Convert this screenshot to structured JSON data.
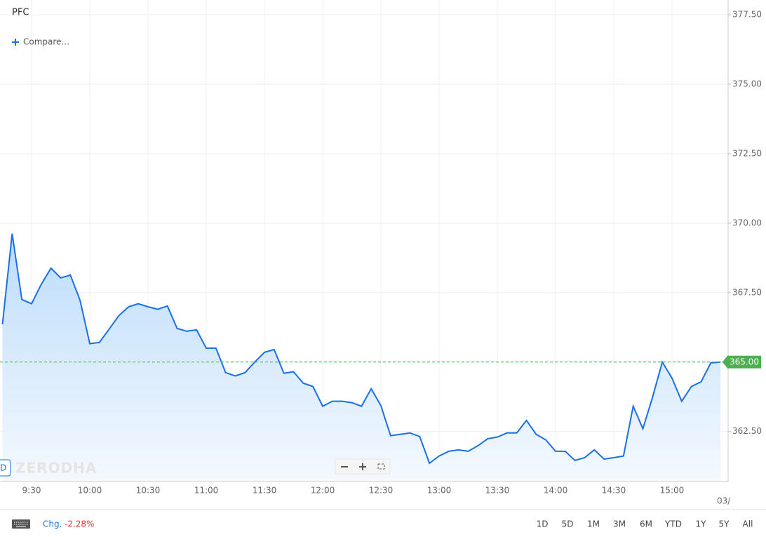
{
  "chart_data": {
    "type": "line",
    "title": "PFC",
    "fill": true,
    "grid": true,
    "x": [
      "9:15",
      "9:20",
      "9:25",
      "9:30",
      "9:35",
      "9:40",
      "9:45",
      "9:50",
      "9:55",
      "10:00",
      "10:05",
      "10:10",
      "10:15",
      "10:20",
      "10:25",
      "10:30",
      "10:35",
      "10:40",
      "10:45",
      "10:50",
      "10:55",
      "11:00",
      "11:05",
      "11:10",
      "11:15",
      "11:20",
      "11:25",
      "11:30",
      "11:35",
      "11:40",
      "11:45",
      "11:50",
      "11:55",
      "12:00",
      "12:05",
      "12:10",
      "12:15",
      "12:20",
      "12:25",
      "12:30",
      "12:35",
      "12:40",
      "12:45",
      "12:50",
      "12:55",
      "13:00",
      "13:05",
      "13:10",
      "13:15",
      "13:20",
      "13:25",
      "13:30",
      "13:35",
      "13:40",
      "13:45",
      "13:50",
      "13:55",
      "14:00",
      "14:05",
      "14:10",
      "14:15",
      "14:20",
      "14:25",
      "14:30",
      "14:35",
      "14:40",
      "14:45",
      "14:50",
      "14:55",
      "15:00",
      "15:05",
      "15:10",
      "15:15",
      "15:20",
      "15:25"
    ],
    "series": [
      {
        "color": "#1a6fe8",
        "values": [
          366.36,
          369.62,
          367.25,
          367.1,
          367.8,
          368.38,
          368.03,
          368.13,
          367.22,
          365.66,
          365.71,
          366.19,
          366.67,
          366.99,
          367.1,
          366.99,
          366.9,
          367.02,
          366.21,
          366.11,
          366.16,
          365.5,
          365.5,
          364.62,
          364.5,
          364.62,
          365.0,
          365.35,
          365.45,
          364.6,
          364.65,
          364.24,
          364.12,
          363.41,
          363.59,
          363.59,
          363.54,
          363.41,
          364.04,
          363.43,
          362.35,
          362.4,
          362.45,
          362.32,
          361.36,
          361.62,
          361.79,
          361.84,
          361.79,
          361.99,
          362.24,
          362.3,
          362.45,
          362.45,
          362.9,
          362.4,
          362.2,
          361.79,
          361.79,
          361.46,
          361.56,
          361.84,
          361.51,
          361.56,
          361.62,
          363.41,
          362.6,
          363.74,
          365.0,
          364.42,
          363.59,
          364.12,
          364.29,
          364.97,
          365.0
        ]
      }
    ],
    "last_price": {
      "value": 365.0,
      "label": "365.00",
      "color": "#4caf50"
    },
    "ylim": [
      360.7,
      378.03
    ],
    "yticks": [
      {
        "value": 362.5,
        "label": "362.50"
      },
      {
        "value": 365,
        "label": "365.00"
      },
      {
        "value": 367.5,
        "label": "367.50"
      },
      {
        "value": 370,
        "label": "370.00"
      },
      {
        "value": 372.5,
        "label": "372.50"
      },
      {
        "value": 375,
        "label": "375.00"
      },
      {
        "value": 377.5,
        "label": "377.50"
      }
    ],
    "xticks": [
      "9:30",
      "10:00",
      "10:30",
      "11:00",
      "11:30",
      "12:00",
      "12:30",
      "13:00",
      "13:30",
      "14:00",
      "14:30",
      "15:00"
    ]
  },
  "ui": {
    "compare": "Compare...",
    "watermark": "ZERODHA",
    "range_button": "D",
    "date_stub": "03/",
    "change_label": "Chg.",
    "change_value": "-2.28%",
    "periods": [
      "1D",
      "5D",
      "1M",
      "3M",
      "6M",
      "YTD",
      "1Y",
      "5Y",
      "All"
    ]
  }
}
